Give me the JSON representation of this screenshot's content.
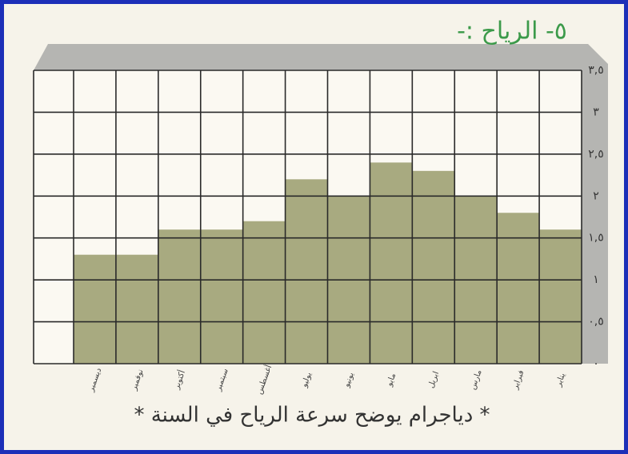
{
  "chart_data": {
    "type": "bar",
    "title": "٥- الرياح :-",
    "caption": "* دياجرام يوضح سرعة الرياح في السنة *",
    "categories": [
      "ديسمبر",
      "نوفمبر",
      "أكتوبر",
      "سبتمبر",
      "أغسطس",
      "يوليو",
      "يونيو",
      "مايو",
      "ابريل",
      "مارس",
      "فبراير",
      "يناير"
    ],
    "values": [
      1.3,
      1.3,
      1.6,
      1.6,
      1.7,
      2.2,
      2.0,
      2.4,
      2.3,
      2.0,
      1.8,
      1.6
    ],
    "color": "#8c8f5a",
    "ylim": [
      0,
      3.5
    ],
    "yticks": [
      {
        "value": 0,
        "label": "٠"
      },
      {
        "value": 0.5,
        "label": "٠,٥"
      },
      {
        "value": 1,
        "label": "١"
      },
      {
        "value": 1.5,
        "label": "١,٥"
      },
      {
        "value": 2,
        "label": "٢"
      },
      {
        "value": 2.5,
        "label": "٢,٥"
      },
      {
        "value": 3,
        "label": "٣"
      },
      {
        "value": 3.5,
        "label": "٣,٥"
      }
    ],
    "grid": true
  }
}
